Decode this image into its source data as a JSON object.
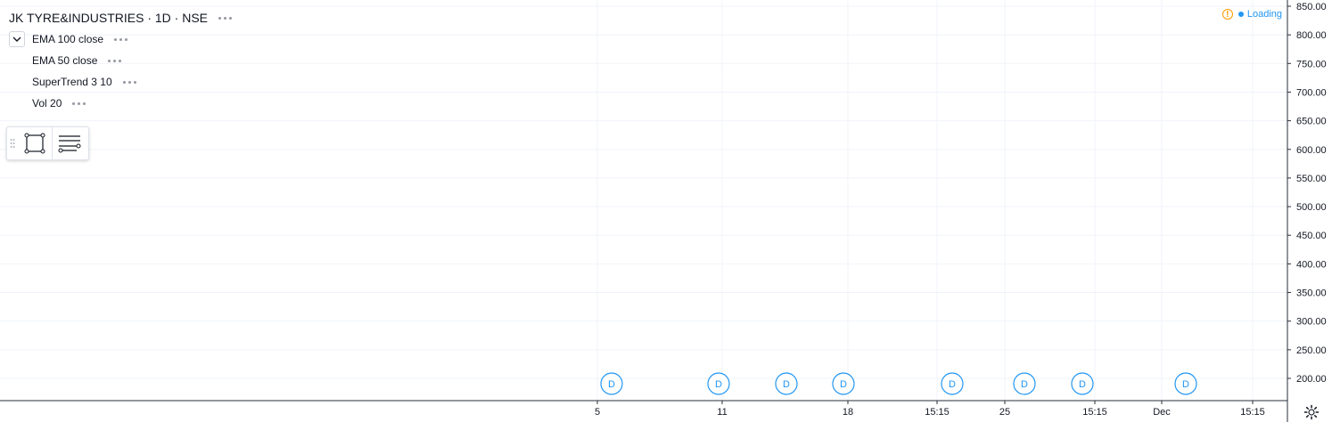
{
  "symbol": {
    "title": "JK TYRE&INDUSTRIES · 1D · NSE"
  },
  "studies": [
    {
      "label": "EMA 100 close"
    },
    {
      "label": "EMA 50 close"
    },
    {
      "label": "SuperTrend 3 10"
    },
    {
      "label": "Vol 20"
    }
  ],
  "status": {
    "loading_label": "Loading",
    "warning_glyph": "!"
  },
  "chart_data": {
    "type": "line",
    "title": "",
    "y_axis": {
      "ticks": [
        "850.00",
        "800.00",
        "750.00",
        "700.00",
        "650.00",
        "600.00",
        "550.00",
        "500.00",
        "450.00",
        "400.00",
        "350.00",
        "300.00",
        "250.00",
        "200.00"
      ],
      "range": [
        180,
        860
      ]
    },
    "x_axis": {
      "ticks": [
        "5",
        "11",
        "18",
        "15:15",
        "25",
        "15:15",
        "Dec",
        "15:15"
      ]
    },
    "dividend_markers": {
      "label": "D",
      "count": 8
    },
    "grid": true
  },
  "colors": {
    "grid": "#f0f3fa",
    "axis_text": "#131722",
    "marker": "#2196f3",
    "warning": "#ff9800"
  }
}
